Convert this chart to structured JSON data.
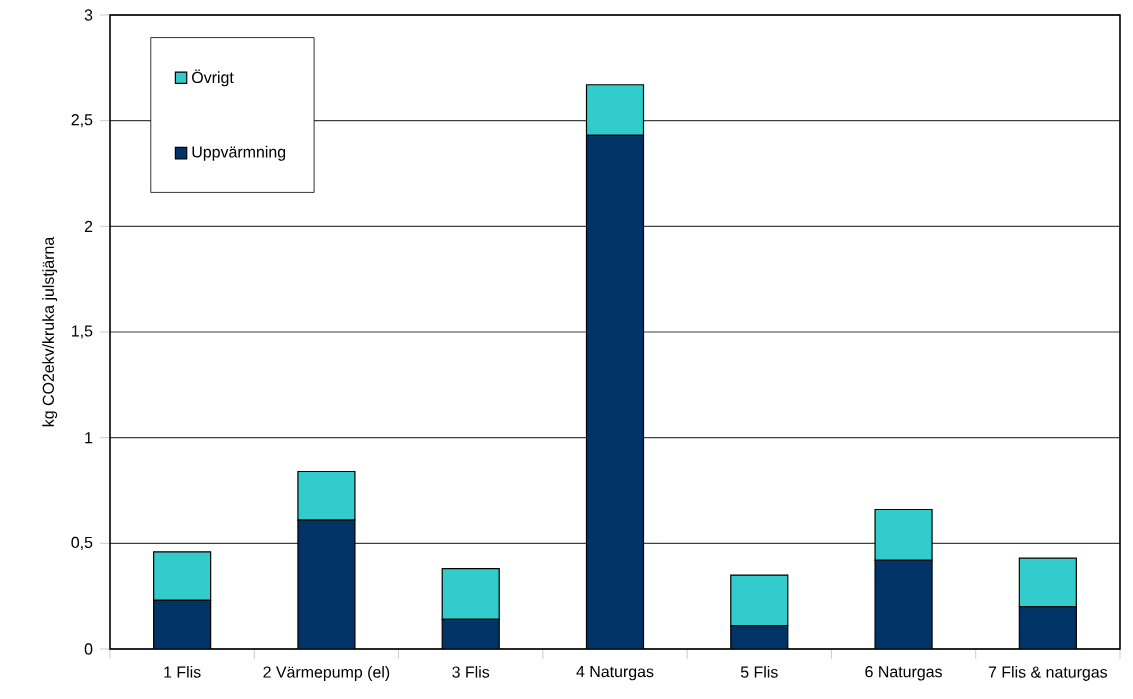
{
  "chart_data": {
    "type": "bar",
    "stacked": true,
    "ylabel": "kg CO2ekv/kruka julstjärna",
    "categories": [
      "1 Flis",
      "2 Värmepump (el)",
      "3 Flis",
      "4 Naturgas",
      "5 Flis",
      "6 Naturgas",
      "7 Flis & naturgas"
    ],
    "series": [
      {
        "name": "Uppvärmning",
        "color": "#003366",
        "values": [
          0.23,
          0.61,
          0.14,
          2.43,
          0.11,
          0.42,
          0.2
        ]
      },
      {
        "name": "Övrigt",
        "color": "#33cccc",
        "values": [
          0.23,
          0.23,
          0.24,
          0.24,
          0.24,
          0.24,
          0.23
        ]
      }
    ],
    "ylim": [
      0,
      3
    ],
    "yticks": [
      0,
      {
        "value": 0.5,
        "label": "0,5"
      },
      1,
      {
        "value": 1.5,
        "label": "1,5"
      },
      2,
      {
        "value": 2.5,
        "label": "2,5"
      },
      3
    ],
    "grid": "y",
    "legend": "top left"
  }
}
